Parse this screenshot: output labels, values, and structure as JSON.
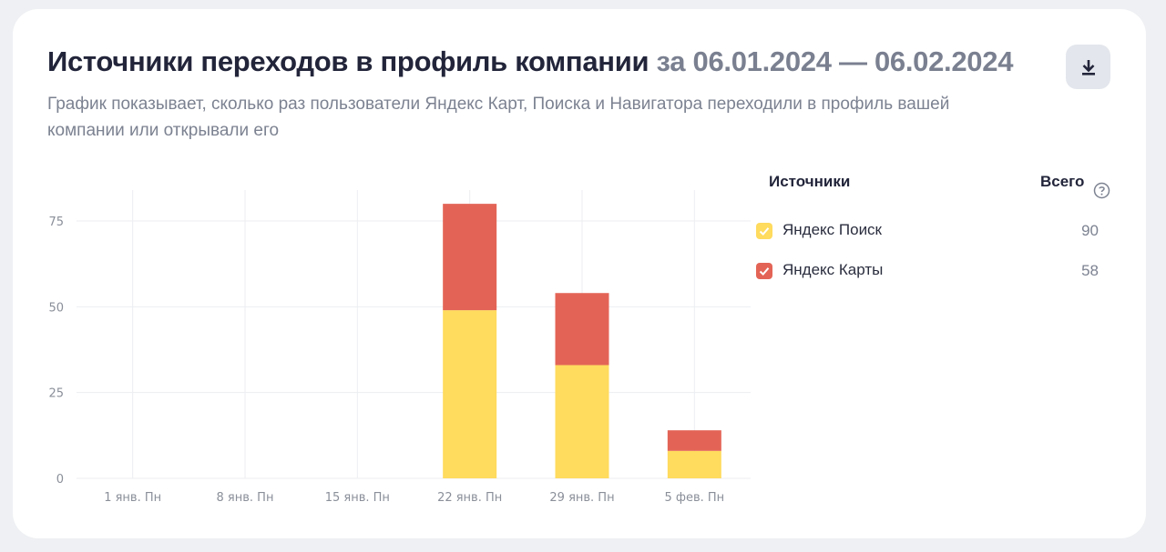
{
  "header": {
    "title": "Источники переходов в профиль компании",
    "period": "за 06.01.2024 — 06.02.2024",
    "subtitle": "График показывает, сколько раз пользователи Яндекс Карт, Поиска и Навигатора переходили в профиль вашей компании или открывали его"
  },
  "icons": {
    "download": "download-icon",
    "help": "question-circle-icon",
    "check": "checkmark-icon"
  },
  "legend": {
    "header_label": "Источники",
    "total_label": "Всего",
    "items": [
      {
        "label": "Яндекс Поиск",
        "total": "90",
        "color": "#ffdb5e",
        "checked": true
      },
      {
        "label": "Яндекс Карты",
        "total": "58",
        "color": "#e36456",
        "checked": true
      }
    ]
  },
  "chart_data": {
    "type": "bar",
    "stacked": true,
    "categories": [
      "1 янв. Пн",
      "8 янв. Пн",
      "15 янв. Пн",
      "22 янв. Пн",
      "29 янв. Пн",
      "5 фев. Пн"
    ],
    "series": [
      {
        "name": "Яндекс Поиск",
        "color": "#ffdb5e",
        "values": [
          0,
          0,
          0,
          49,
          33,
          8
        ]
      },
      {
        "name": "Яндекс Карты",
        "color": "#e36456",
        "values": [
          0,
          0,
          0,
          31,
          21,
          6
        ]
      }
    ],
    "yticks": [
      0,
      25,
      50,
      75
    ],
    "ylim": [
      0,
      84
    ],
    "grid": true
  }
}
